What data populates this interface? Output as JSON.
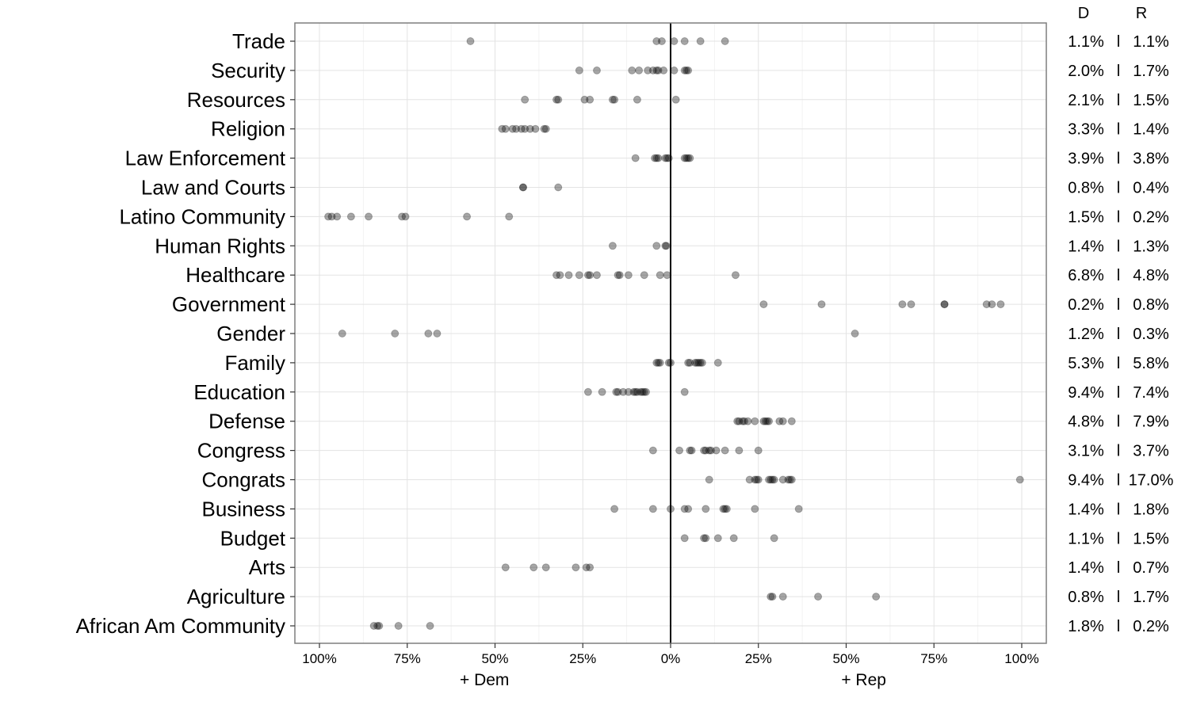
{
  "chart_data": {
    "type": "scatter",
    "title": "",
    "x_axis": {
      "range": [
        -107,
        107
      ],
      "ticks": [
        {
          "value": -100,
          "label": "100%"
        },
        {
          "value": -75,
          "label": "75%"
        },
        {
          "value": -50,
          "label": "50%"
        },
        {
          "value": -25,
          "label": "25%"
        },
        {
          "value": 0,
          "label": "0%"
        },
        {
          "value": 25,
          "label": "25%"
        },
        {
          "value": 50,
          "label": "50%"
        },
        {
          "value": 75,
          "label": "75%"
        },
        {
          "value": 100,
          "label": "100%"
        }
      ],
      "left_label": "+ Dem",
      "right_label": "+ Rep"
    },
    "grid": true,
    "column_headers": {
      "dem": "D",
      "rep": "R",
      "separator": "l"
    },
    "categories": [
      {
        "name": "Trade",
        "dem": "1.1%",
        "rep": "1.1%",
        "points": [
          -57,
          -4,
          -2.5,
          1,
          4,
          8.5,
          15.5
        ]
      },
      {
        "name": "Security",
        "dem": "2.0%",
        "rep": "1.7%",
        "points": [
          -26,
          -21,
          -11,
          -9,
          -6.5,
          -5,
          -4,
          -3.5,
          -2,
          1,
          4,
          4.5,
          5
        ]
      },
      {
        "name": "Resources",
        "dem": "2.1%",
        "rep": "1.5%",
        "points": [
          -41.5,
          -32.5,
          -32,
          -24.5,
          -23,
          -16.5,
          -16,
          -9.5,
          1.5
        ]
      },
      {
        "name": "Religion",
        "dem": "3.3%",
        "rep": "1.4%",
        "points": [
          -48,
          -47,
          -45,
          -44,
          -42.5,
          -41.5,
          -40,
          -38.5,
          -36,
          -35.5
        ]
      },
      {
        "name": "Law Enforcement",
        "dem": "3.9%",
        "rep": "3.8%",
        "points": [
          -10,
          -4.5,
          -4,
          -3.5,
          -1.5,
          -1,
          -0.5,
          4,
          4.5,
          5,
          5.5
        ]
      },
      {
        "name": "Law and Courts",
        "dem": "0.8%",
        "rep": "0.4%",
        "points": [
          -42,
          -42,
          -32
        ]
      },
      {
        "name": "Latino Community",
        "dem": "1.5%",
        "rep": "0.2%",
        "points": [
          -97.5,
          -96.5,
          -95,
          -91,
          -86,
          -76.5,
          -75.5,
          -58,
          -46
        ]
      },
      {
        "name": "Human Rights",
        "dem": "1.4%",
        "rep": "1.3%",
        "points": [
          -16.5,
          -4,
          -1.5,
          -1.2
        ]
      },
      {
        "name": "Healthcare",
        "dem": "6.8%",
        "rep": "4.8%",
        "points": [
          -32.5,
          -31.5,
          -29,
          -26,
          -23.5,
          -23,
          -21,
          -15,
          -14.5,
          -12,
          -7.5,
          -3,
          -1,
          18.5
        ]
      },
      {
        "name": "Government",
        "dem": "0.2%",
        "rep": "0.8%",
        "points": [
          26.5,
          43,
          66,
          68.5,
          78,
          78,
          90,
          91.5,
          94
        ]
      },
      {
        "name": "Gender",
        "dem": "1.2%",
        "rep": "0.3%",
        "points": [
          -93.5,
          -78.5,
          -69,
          -66.5,
          52.5
        ]
      },
      {
        "name": "Family",
        "dem": "5.3%",
        "rep": "5.8%",
        "points": [
          -4,
          -3.5,
          -3,
          -0.5,
          0,
          5,
          5.5,
          7,
          7.5,
          8,
          8.5,
          9,
          13.5
        ]
      },
      {
        "name": "Education",
        "dem": "9.4%",
        "rep": "7.4%",
        "points": [
          -23.5,
          -19.5,
          -15.5,
          -15,
          -13.5,
          -12,
          -10.5,
          -10,
          -9.5,
          -8.5,
          -8,
          -7.5,
          -7,
          4
        ]
      },
      {
        "name": "Defense",
        "dem": "4.8%",
        "rep": "7.9%",
        "points": [
          19,
          19.5,
          20.5,
          21,
          22,
          24,
          26.5,
          27,
          27.5,
          28,
          31,
          32,
          34.5
        ]
      },
      {
        "name": "Congress",
        "dem": "3.1%",
        "rep": "3.7%",
        "points": [
          -5,
          2.5,
          5.5,
          6,
          9.5,
          10,
          11,
          11.5,
          13,
          15.5,
          19.5,
          25
        ]
      },
      {
        "name": "Congrats",
        "dem": "9.4%",
        "rep": "17.0%",
        "points": [
          11,
          22.5,
          24,
          24.5,
          25,
          28,
          28.5,
          29,
          29.5,
          32,
          33.5,
          34,
          34.5,
          99.5
        ]
      },
      {
        "name": "Business",
        "dem": "1.4%",
        "rep": "1.8%",
        "points": [
          -16,
          -5,
          0,
          4,
          5,
          10,
          15,
          15.5,
          16,
          24,
          36.5
        ]
      },
      {
        "name": "Budget",
        "dem": "1.1%",
        "rep": "1.5%",
        "points": [
          4,
          9.5,
          10,
          13.5,
          18,
          29.5
        ]
      },
      {
        "name": "Arts",
        "dem": "1.4%",
        "rep": "0.7%",
        "points": [
          -47,
          -39,
          -35.5,
          -27,
          -24,
          -23
        ]
      },
      {
        "name": "Agriculture",
        "dem": "0.8%",
        "rep": "1.7%",
        "points": [
          28.5,
          29,
          32,
          42,
          58.5
        ]
      },
      {
        "name": "African Am Community",
        "dem": "1.8%",
        "rep": "0.2%",
        "points": [
          -84.5,
          -83.5,
          -83,
          -77.5,
          -68.5
        ]
      }
    ]
  }
}
